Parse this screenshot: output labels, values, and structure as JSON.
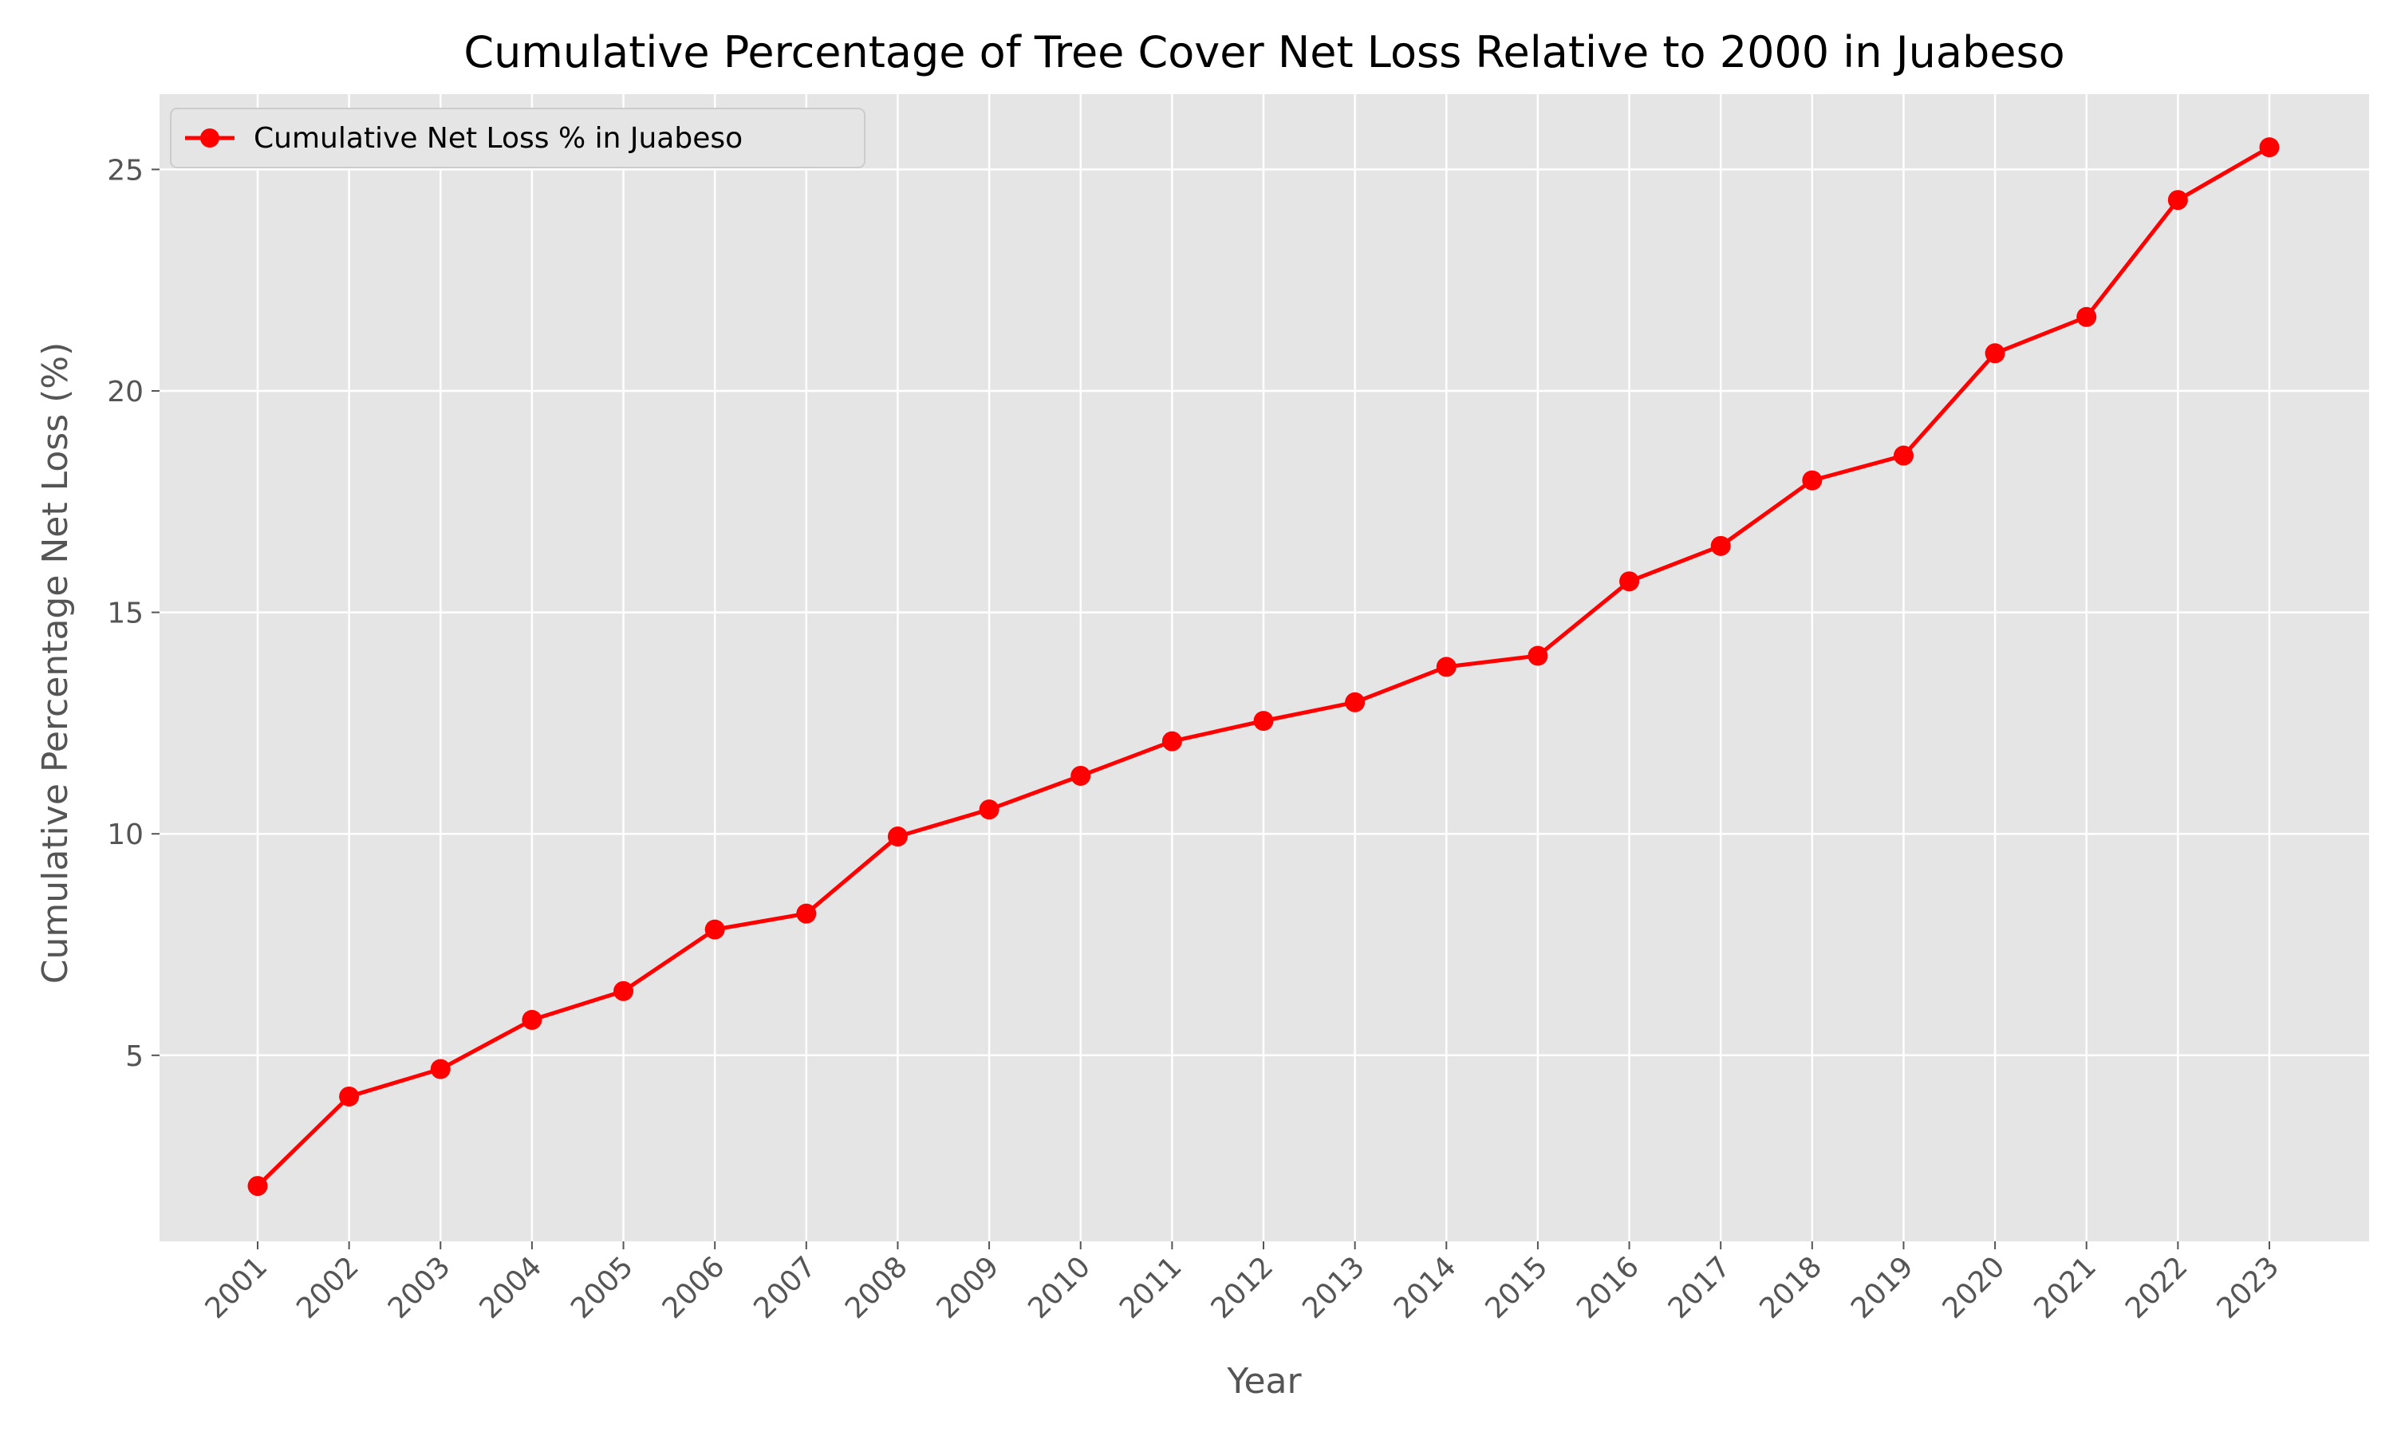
{
  "chart_data": {
    "type": "line",
    "title": "Cumulative Percentage of Tree Cover Net Loss Relative to 2000 in Juabeso",
    "xlabel": "Year",
    "ylabel": "Cumulative Percentage Net Loss (%)",
    "categories": [
      "2001",
      "2002",
      "2003",
      "2004",
      "2005",
      "2006",
      "2007",
      "2008",
      "2009",
      "2010",
      "2011",
      "2012",
      "2013",
      "2014",
      "2015",
      "2016",
      "2017",
      "2018",
      "2019",
      "2020",
      "2021",
      "2022",
      "2023"
    ],
    "series": [
      {
        "name": "Cumulative Net Loss % in Juabeso",
        "color": "#ff0000",
        "marker": "circle",
        "values": [
          2.05,
          4.07,
          4.69,
          5.8,
          6.45,
          7.84,
          8.2,
          9.94,
          10.55,
          11.31,
          12.09,
          12.55,
          12.97,
          13.77,
          14.02,
          15.7,
          16.5,
          17.98,
          18.54,
          20.85,
          21.67,
          24.31,
          25.5
        ]
      }
    ],
    "yticks": [
      5,
      10,
      15,
      20,
      25
    ],
    "ylim": [
      0.8,
      26.7
    ],
    "grid": true,
    "legend": "upper-left",
    "background": "#e5e5e5",
    "gridColor": "#ffffff"
  }
}
